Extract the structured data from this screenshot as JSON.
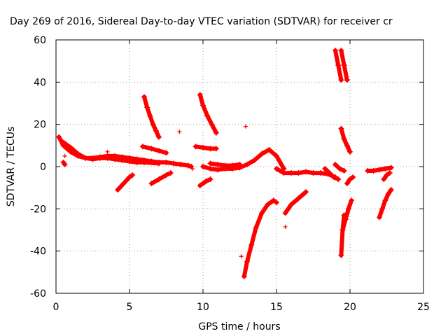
{
  "chart_data": {
    "type": "scatter",
    "title": "Day 269 of 2016, Sidereal Day-to-day VTEC variation (SDTVAR) for receiver cr",
    "xlabel": "GPS time / hours",
    "ylabel": "SDTVAR / TECUs",
    "xlim": [
      0,
      25
    ],
    "ylim": [
      -60,
      60
    ],
    "xticks": [
      0,
      5,
      10,
      15,
      20,
      25
    ],
    "yticks": [
      -60,
      -40,
      -20,
      0,
      20,
      40,
      60
    ],
    "grid": true,
    "marker": "plus",
    "color": "#ff0000",
    "segments": [
      {
        "x": [
          0.2,
          0.5,
          1.0,
          1.5,
          2.0,
          2.5,
          3.0,
          3.5,
          4.0,
          4.5,
          5.0,
          5.5,
          6.0,
          6.5,
          7.0,
          7.5,
          8.0,
          8.5,
          9.0,
          9.2
        ],
        "y": [
          14,
          10,
          7,
          5,
          4,
          4,
          4.5,
          5,
          5,
          4.5,
          4,
          3.5,
          3,
          2.5,
          2,
          2,
          1.5,
          1,
          0.5,
          0
        ]
      },
      {
        "x": [
          0.4,
          1.0,
          1.5,
          2.0,
          2.5,
          3.0,
          3.5,
          4.0,
          4.5,
          5.0,
          5.5,
          6.0,
          7.0
        ],
        "y": [
          12,
          9,
          6,
          4,
          3.5,
          4,
          4,
          3.5,
          3,
          2.5,
          2,
          2,
          1.5
        ]
      },
      {
        "x": [
          0.5,
          0.6
        ],
        "y": [
          2,
          1
        ]
      },
      {
        "x": [
          4.2,
          4.6,
          5.0,
          5.2
        ],
        "y": [
          -11,
          -8,
          -5,
          -4
        ]
      },
      {
        "x": [
          6.0,
          6.2,
          6.4,
          6.6,
          6.8,
          7.0
        ],
        "y": [
          33,
          28,
          24,
          20,
          17,
          14
        ]
      },
      {
        "x": [
          5.9,
          6.5,
          7.0,
          7.5
        ],
        "y": [
          9.5,
          8.5,
          7.5,
          6.5
        ]
      },
      {
        "x": [
          6.5,
          7.0,
          7.5,
          7.8
        ],
        "y": [
          -8,
          -6,
          -4,
          -3
        ]
      },
      {
        "x": [
          9.8,
          10.0,
          10.3,
          10.6,
          10.9
        ],
        "y": [
          34,
          29,
          24,
          20,
          16
        ]
      },
      {
        "x": [
          9.5,
          10.0,
          10.5,
          10.9
        ],
        "y": [
          9.5,
          9,
          8.5,
          8.5
        ]
      },
      {
        "x": [
          9.8,
          10.2,
          10.5
        ],
        "y": [
          -9,
          -7,
          -6
        ]
      },
      {
        "x": [
          10.0,
          10.5,
          11.0,
          11.5,
          12.0,
          12.5,
          13.0,
          13.5,
          14.0,
          14.5,
          15.0,
          15.5
        ],
        "y": [
          0,
          -1,
          -1.5,
          -1,
          -1,
          -0.5,
          1,
          3,
          6,
          8,
          5,
          -1
        ]
      },
      {
        "x": [
          10.5,
          11.0,
          11.5,
          12.0,
          12.5
        ],
        "y": [
          1.5,
          1,
          0.5,
          0.5,
          1
        ]
      },
      {
        "x": [
          12.8,
          13.0,
          13.3,
          13.6,
          14.0,
          14.4,
          14.8,
          15.0
        ],
        "y": [
          -52,
          -45,
          -37,
          -29,
          -22,
          -18,
          -16,
          -17
        ]
      },
      {
        "x": [
          15.0,
          15.5,
          16.0,
          16.5,
          17.0,
          17.5,
          18.0,
          18.5,
          19.0
        ],
        "y": [
          -1,
          -3,
          -3,
          -3,
          -2.5,
          -3,
          -3,
          -3.5,
          -5
        ]
      },
      {
        "x": [
          15.6,
          16.0,
          16.5,
          17.0
        ],
        "y": [
          -22,
          -18,
          -15,
          -12
        ]
      },
      {
        "x": [
          18.3,
          18.6,
          18.9,
          19.2
        ],
        "y": [
          -1,
          -3,
          -5,
          -6
        ]
      },
      {
        "x": [
          19.0,
          19.2,
          19.4
        ],
        "y": [
          55,
          48,
          41
        ]
      },
      {
        "x": [
          19.4,
          19.6,
          19.8
        ],
        "y": [
          55,
          48,
          41
        ]
      },
      {
        "x": [
          19.4,
          19.6,
          19.8,
          20.0
        ],
        "y": [
          18,
          13,
          10,
          7
        ]
      },
      {
        "x": [
          19.4,
          19.5,
          19.6
        ],
        "y": [
          -42,
          -30,
          -23
        ]
      },
      {
        "x": [
          19.5,
          19.7,
          19.9,
          20.1
        ],
        "y": [
          -30,
          -25,
          -20,
          -16
        ]
      },
      {
        "x": [
          19.0,
          19.3,
          19.6
        ],
        "y": [
          1,
          -1,
          -2
        ]
      },
      {
        "x": [
          19.8,
          20.0,
          20.2
        ],
        "y": [
          -8,
          -6,
          -5
        ]
      },
      {
        "x": [
          21.2,
          21.6,
          22.0,
          22.4,
          22.8
        ],
        "y": [
          -2,
          -2,
          -1.5,
          -1,
          -0.5
        ]
      },
      {
        "x": [
          22.0,
          22.2,
          22.4,
          22.6,
          22.8
        ],
        "y": [
          -24,
          -20,
          -16,
          -13,
          -11
        ]
      },
      {
        "x": [
          22.3,
          22.5,
          22.7
        ],
        "y": [
          -6,
          -4,
          -3
        ]
      }
    ],
    "points": [
      {
        "x": 8.4,
        "y": 16.5
      },
      {
        "x": 12.9,
        "y": 19
      },
      {
        "x": 12.6,
        "y": -42.5
      },
      {
        "x": 15.6,
        "y": -28.5
      },
      {
        "x": 9.3,
        "y": -1
      },
      {
        "x": 3.5,
        "y": 7
      },
      {
        "x": 0.6,
        "y": 5
      }
    ]
  }
}
